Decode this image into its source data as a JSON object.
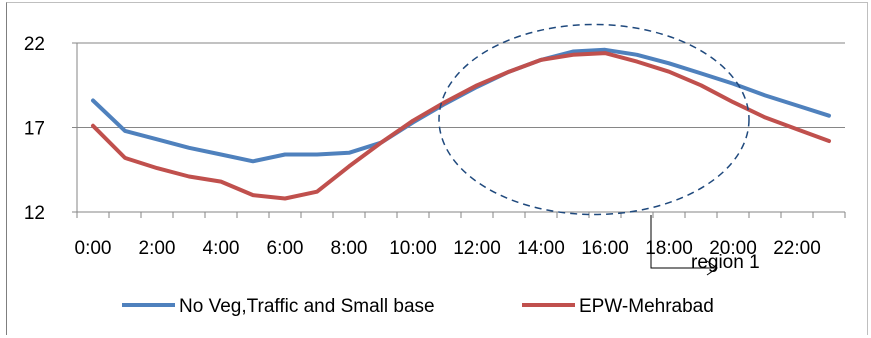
{
  "chart_data": {
    "type": "line",
    "x": [
      "0:00",
      "1:00",
      "2:00",
      "3:00",
      "4:00",
      "5:00",
      "6:00",
      "7:00",
      "8:00",
      "9:00",
      "10:00",
      "11:00",
      "12:00",
      "13:00",
      "14:00",
      "15:00",
      "16:00",
      "17:00",
      "18:00",
      "19:00",
      "20:00",
      "21:00",
      "22:00",
      "23:00"
    ],
    "x_tick_labels": [
      "0:00",
      "2:00",
      "4:00",
      "6:00",
      "8:00",
      "10:00",
      "12:00",
      "14:00",
      "16:00",
      "18:00",
      "20:00",
      "22:00"
    ],
    "series": [
      {
        "name": "No Veg,Traffic and Small base",
        "color": "#4f81bd",
        "values": [
          18.6,
          16.8,
          16.3,
          15.8,
          15.4,
          15.0,
          15.4,
          15.4,
          15.5,
          16.1,
          17.3,
          18.4,
          19.4,
          20.3,
          21.0,
          21.5,
          21.6,
          21.3,
          20.8,
          20.2,
          19.6,
          18.9,
          18.3,
          17.7
        ],
        "color_name": "blue"
      },
      {
        "name": "EPW-Mehrabad",
        "color": "#c0504d",
        "values": [
          17.1,
          15.2,
          14.6,
          14.1,
          13.8,
          13.0,
          12.8,
          13.2,
          14.7,
          16.1,
          17.4,
          18.5,
          19.5,
          20.3,
          21.0,
          21.3,
          21.4,
          20.9,
          20.3,
          19.5,
          18.5,
          17.6,
          16.9,
          16.2
        ]
      }
    ],
    "y_ticks": [
      12,
      17,
      22
    ],
    "ylim": [
      12,
      22
    ],
    "grid": "horizontal",
    "legend_position": "bottom",
    "annotation": {
      "label": "region 1",
      "shape": "dashed-ellipse",
      "x_center": "16:00",
      "y_center": 17
    }
  }
}
